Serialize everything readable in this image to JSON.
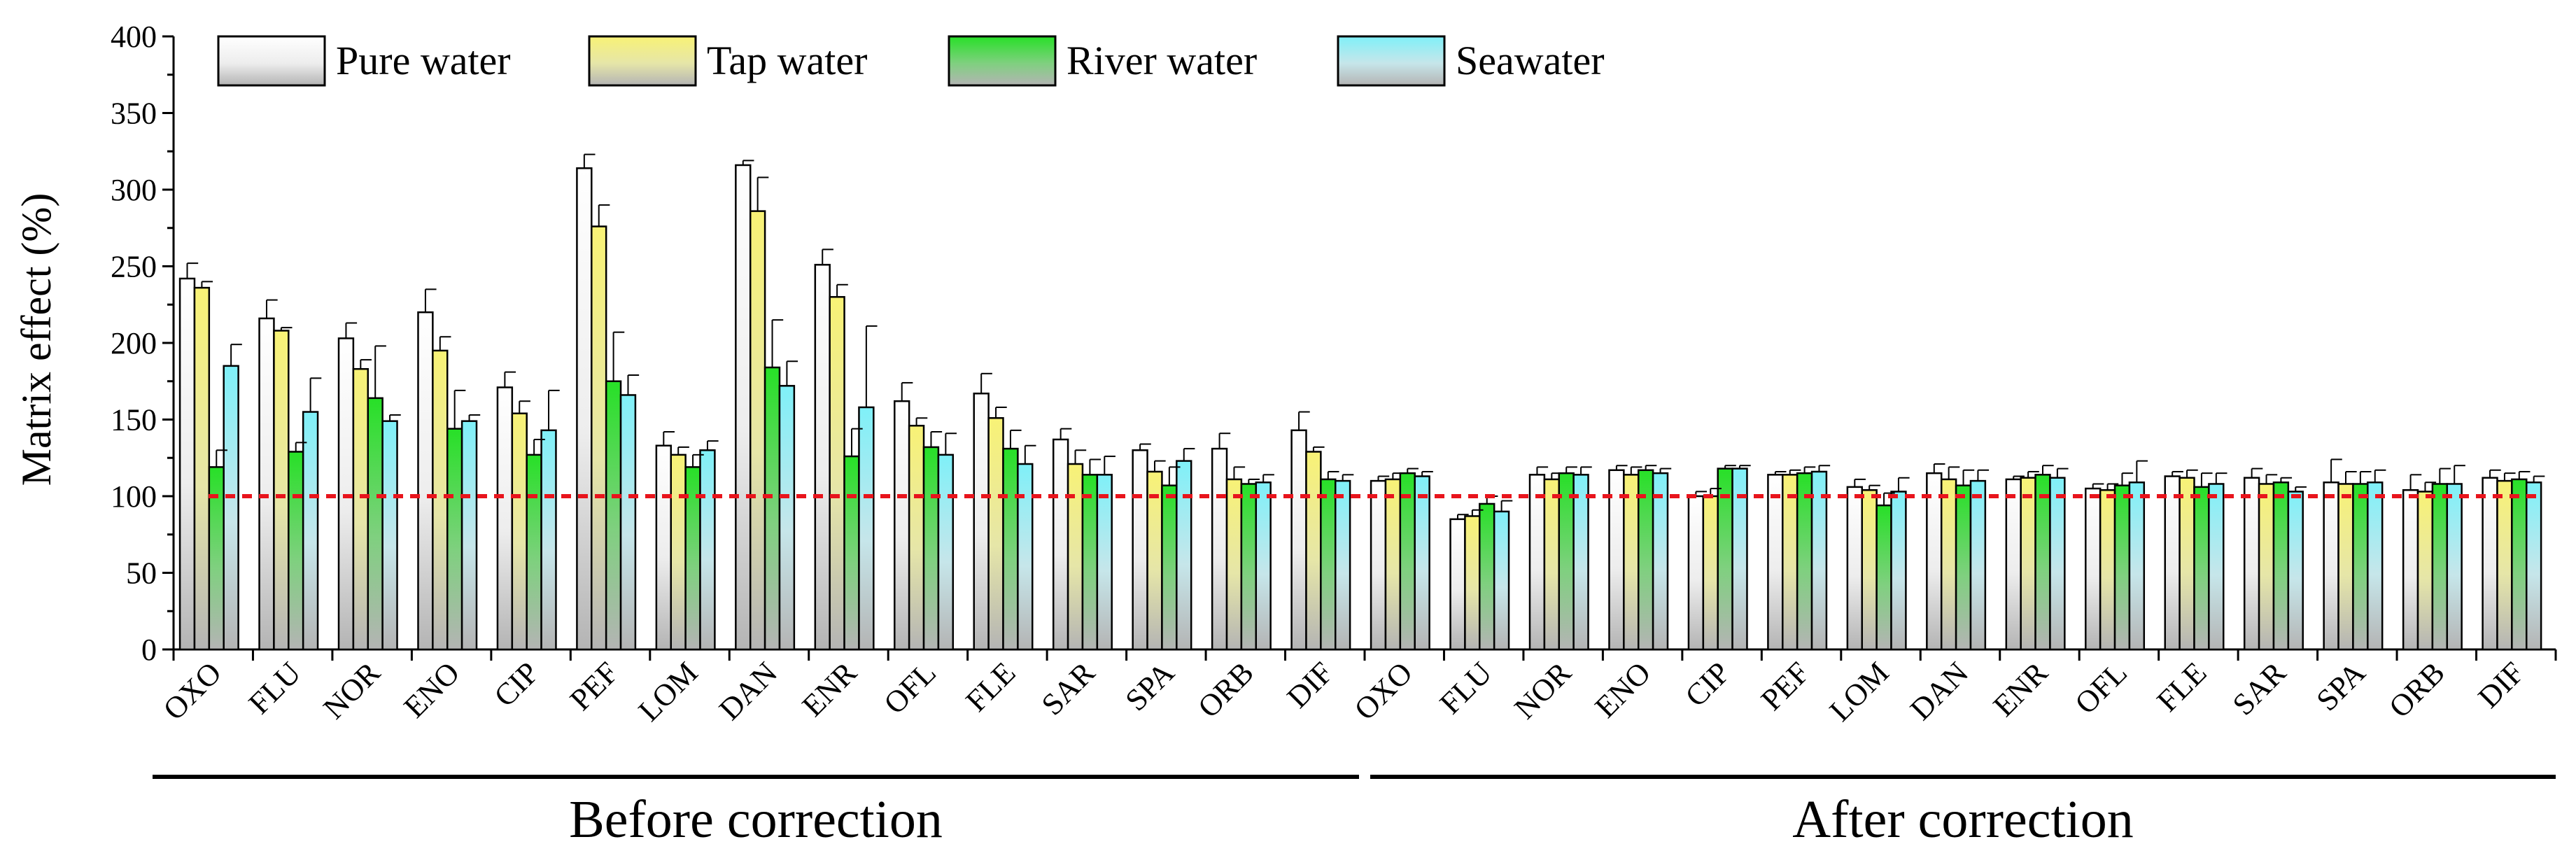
{
  "chart_data": {
    "type": "bar",
    "ylabel": "Matrix effect (%)",
    "xlabel": "",
    "ylim": [
      0,
      400
    ],
    "yticks": [
      0,
      50,
      100,
      150,
      200,
      250,
      300,
      350,
      400
    ],
    "reference_line": 100,
    "groups": [
      {
        "label": "Before correction",
        "categories": [
          "OXO",
          "FLU",
          "NOR",
          "ENO",
          "CIP",
          "PEF",
          "LOM",
          "DAN",
          "ENR",
          "OFL",
          "FLE",
          "SAR",
          "SPA",
          "ORB",
          "DIF"
        ]
      },
      {
        "label": "After correction",
        "categories": [
          "OXO",
          "FLU",
          "NOR",
          "ENO",
          "CIP",
          "PEF",
          "LOM",
          "DAN",
          "ENR",
          "OFL",
          "FLE",
          "SAR",
          "SPA",
          "ORB",
          "DIF"
        ]
      }
    ],
    "series": [
      {
        "name": "Pure water",
        "color": "#ffffff",
        "values": [
          242,
          216,
          203,
          220,
          171,
          314,
          133,
          316,
          251,
          162,
          167,
          137,
          130,
          131,
          143,
          110,
          85,
          114,
          117,
          100,
          114,
          106,
          115,
          111,
          105,
          113,
          112,
          109,
          104,
          112
        ],
        "errors": [
          10,
          12,
          10,
          15,
          10,
          9,
          9,
          3,
          10,
          12,
          13,
          7,
          4,
          10,
          12,
          3,
          3,
          5,
          3,
          3,
          2,
          5,
          6,
          2,
          3,
          3,
          6,
          15,
          10,
          5
        ]
      },
      {
        "name": "Tap water",
        "color": "#f6f07a",
        "values": [
          236,
          208,
          183,
          195,
          154,
          276,
          127,
          286,
          230,
          146,
          151,
          121,
          116,
          111,
          129,
          111,
          87,
          111,
          114,
          100,
          114,
          104,
          111,
          112,
          104,
          112,
          108,
          108,
          103,
          110
        ],
        "errors": [
          4,
          2,
          6,
          9,
          8,
          14,
          5,
          22,
          8,
          5,
          7,
          9,
          7,
          8,
          3,
          4,
          4,
          4,
          5,
          5,
          3,
          3,
          8,
          4,
          4,
          5,
          6,
          8,
          6,
          5
        ]
      },
      {
        "name": "River water",
        "color": "#3ee23e",
        "values": [
          119,
          129,
          164,
          144,
          127,
          175,
          119,
          184,
          126,
          132,
          131,
          114,
          107,
          108,
          111,
          115,
          95,
          115,
          117,
          118,
          115,
          94,
          107,
          114,
          107,
          106,
          109,
          108,
          108,
          111
        ],
        "errors": [
          11,
          6,
          34,
          25,
          10,
          32,
          8,
          31,
          18,
          10,
          12,
          10,
          12,
          3,
          5,
          3,
          5,
          4,
          3,
          2,
          4,
          8,
          10,
          6,
          8,
          9,
          3,
          8,
          10,
          5
        ]
      },
      {
        "name": "Seawater",
        "color": "#7fe9f2",
        "values": [
          185,
          155,
          149,
          149,
          143,
          166,
          130,
          172,
          158,
          127,
          121,
          114,
          123,
          109,
          110,
          113,
          90,
          114,
          115,
          118,
          116,
          103,
          110,
          112,
          109,
          108,
          103,
          109,
          108,
          109
        ],
        "errors": [
          14,
          22,
          4,
          4,
          26,
          13,
          6,
          16,
          53,
          14,
          12,
          12,
          8,
          5,
          4,
          3,
          7,
          5,
          3,
          2,
          4,
          9,
          7,
          6,
          14,
          7,
          3,
          8,
          12,
          4
        ]
      }
    ]
  }
}
